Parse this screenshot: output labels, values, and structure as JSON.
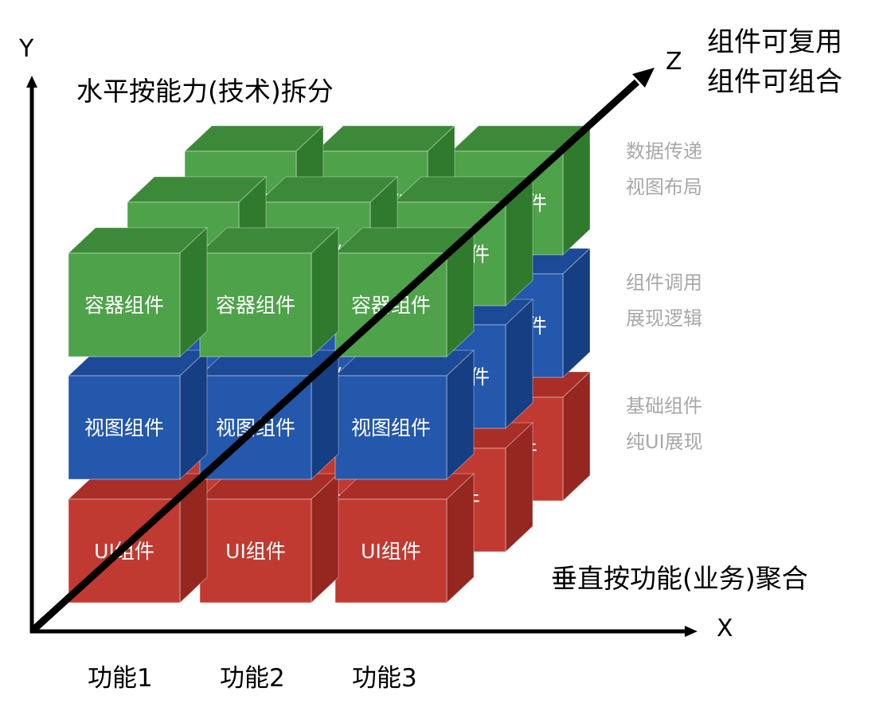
{
  "axes": {
    "y_label": "Y",
    "x_label": "X",
    "z_label": "Z"
  },
  "horizontal_split": "水平按能力(技术)拆分",
  "vertical_aggregate": "垂直按功能(业务)聚合",
  "z_captions": [
    "组件可复用",
    "组件可组合"
  ],
  "layers": [
    {
      "id": "container",
      "cube_label": "容器组件",
      "color": "#4ea24a",
      "top_color": "#3c8a39",
      "side_color": "#2f7a2c",
      "notes": [
        "数据传递",
        "视图布局"
      ]
    },
    {
      "id": "view",
      "cube_label": "视图组件",
      "color": "#2458ad",
      "top_color": "#1c4a96",
      "side_color": "#163e82",
      "notes": [
        "组件调用",
        "展现逻辑"
      ]
    },
    {
      "id": "ui",
      "cube_label": "UI组件",
      "color": "#c13a31",
      "top_color": "#a82e27",
      "side_color": "#962620",
      "notes": [
        "基础组件",
        "纯UI展现"
      ]
    }
  ],
  "functions": [
    "功能1",
    "功能2",
    "功能3"
  ]
}
